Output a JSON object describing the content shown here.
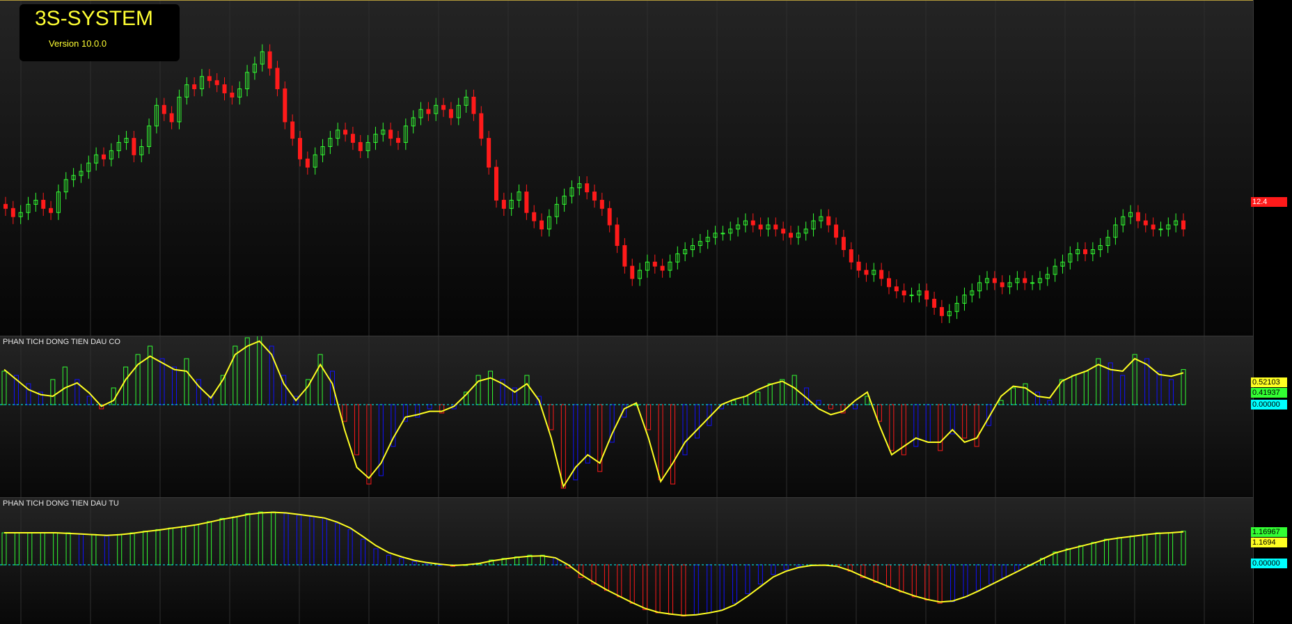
{
  "app": {
    "title": "3S-SYSTEM",
    "version": "Version 10.0.0"
  },
  "price_pane": {
    "last_price_label": "12.4",
    "colors": {
      "up": "#33ff33",
      "down": "#ff1a1a",
      "tag": "#ff1a1a"
    },
    "chart_data": {
      "type": "candlestick",
      "x": "bar index",
      "close": [
        12.9,
        12.7,
        12.8,
        13.0,
        13.1,
        12.9,
        12.8,
        13.3,
        13.6,
        13.7,
        13.8,
        14.0,
        14.2,
        14.1,
        14.3,
        14.5,
        14.6,
        14.2,
        14.4,
        14.9,
        15.4,
        15.2,
        15.0,
        15.6,
        15.9,
        15.8,
        16.1,
        16.0,
        15.9,
        15.7,
        15.6,
        15.8,
        16.2,
        16.4,
        16.7,
        16.3,
        15.8,
        15.0,
        14.6,
        14.1,
        13.9,
        14.2,
        14.4,
        14.6,
        14.8,
        14.7,
        14.5,
        14.3,
        14.5,
        14.7,
        14.8,
        14.6,
        14.5,
        14.9,
        15.1,
        15.3,
        15.2,
        15.4,
        15.3,
        15.1,
        15.4,
        15.6,
        15.2,
        14.6,
        13.9,
        13.1,
        12.9,
        13.1,
        13.3,
        12.8,
        12.6,
        12.4,
        12.7,
        13.0,
        13.2,
        13.4,
        13.5,
        13.3,
        13.1,
        12.9,
        12.5,
        12.0,
        11.5,
        11.2,
        11.4,
        11.6,
        11.5,
        11.4,
        11.6,
        11.8,
        11.9,
        12.0,
        12.1,
        12.2,
        12.3,
        12.3,
        12.4,
        12.5,
        12.6,
        12.5,
        12.4,
        12.5,
        12.4,
        12.3,
        12.2,
        12.3,
        12.4,
        12.6,
        12.7,
        12.5,
        12.2,
        11.9,
        11.6,
        11.4,
        11.3,
        11.4,
        11.2,
        11.0,
        10.9,
        10.8,
        10.8,
        10.9,
        10.7,
        10.5,
        10.3,
        10.4,
        10.6,
        10.8,
        10.9,
        11.1,
        11.2,
        11.1,
        11.0,
        11.1,
        11.2,
        11.1,
        11.1,
        11.2,
        11.3,
        11.5,
        11.6,
        11.8,
        11.9,
        11.8,
        11.9,
        12.0,
        12.2,
        12.5,
        12.7,
        12.8,
        12.6,
        12.5,
        12.4,
        12.4,
        12.5,
        12.6,
        12.4
      ],
      "last": 12.4
    }
  },
  "dau_co_pane": {
    "title": "PHAN TICH DONG TIEN DAU CO",
    "values": [
      "0.52103",
      "0.41937",
      "0.00000"
    ],
    "colors": {
      "pos": "#33ff33",
      "neg": "#ff1a1a",
      "weak": "#1010ff",
      "line": "#ffff22",
      "zero": "#00ffff"
    },
    "chart_data": {
      "type": "bar",
      "series": [
        {
          "values": [
            0.4,
            0.35,
            0.25,
            0.15,
            0.3,
            0.45,
            0.3,
            0.1,
            -0.05,
            0.2,
            0.45,
            0.6,
            0.7,
            0.55,
            0.45,
            0.55,
            0.3,
            0.1,
            0.35,
            0.7,
            0.8,
            0.85,
            0.7,
            0.35,
            0.1,
            0.3,
            0.6,
            0.4,
            -0.2,
            -0.6,
            -0.95,
            -0.85,
            -0.5,
            -0.2,
            -0.15,
            -0.05,
            -0.1,
            -0.05,
            0.15,
            0.35,
            0.4,
            0.3,
            0.2,
            0.35,
            0.1,
            -0.3,
            -1.0,
            -0.9,
            -0.7,
            -0.8,
            -0.45,
            -0.15,
            0.0,
            -0.3,
            -0.9,
            -0.95,
            -0.6,
            -0.4,
            -0.25,
            -0.05,
            0.05,
            0.1,
            0.15,
            0.25,
            0.3,
            0.35,
            0.2,
            0.05,
            -0.05,
            -0.1,
            -0.05,
            0.1,
            -0.2,
            -0.55,
            -0.6,
            -0.5,
            -0.45,
            -0.55,
            -0.35,
            -0.4,
            -0.5,
            -0.25,
            0.05,
            0.2,
            0.25,
            0.15,
            0.05,
            0.3,
            0.35,
            0.4,
            0.55,
            0.5,
            0.35,
            0.6,
            0.55,
            0.4,
            0.3,
            0.42
          ]
        },
        {
          "values": [
            0.42,
            0.3,
            0.18,
            0.12,
            0.1,
            0.2,
            0.26,
            0.14,
            -0.02,
            0.05,
            0.3,
            0.48,
            0.58,
            0.5,
            0.42,
            0.4,
            0.22,
            0.08,
            0.3,
            0.6,
            0.7,
            0.76,
            0.6,
            0.25,
            0.05,
            0.22,
            0.48,
            0.25,
            -0.3,
            -0.75,
            -0.88,
            -0.7,
            -0.4,
            -0.15,
            -0.12,
            -0.08,
            -0.08,
            -0.02,
            0.12,
            0.28,
            0.32,
            0.25,
            0.15,
            0.25,
            0.05,
            -0.4,
            -0.98,
            -0.75,
            -0.6,
            -0.7,
            -0.35,
            -0.05,
            0.02,
            -0.4,
            -0.92,
            -0.7,
            -0.45,
            -0.3,
            -0.15,
            0.0,
            0.06,
            0.1,
            0.18,
            0.24,
            0.28,
            0.2,
            0.08,
            -0.05,
            -0.12,
            -0.08,
            0.05,
            0.15,
            -0.25,
            -0.6,
            -0.5,
            -0.4,
            -0.45,
            -0.45,
            -0.3,
            -0.45,
            -0.4,
            -0.15,
            0.1,
            0.22,
            0.2,
            0.1,
            0.08,
            0.28,
            0.35,
            0.4,
            0.48,
            0.42,
            0.4,
            0.55,
            0.48,
            0.36,
            0.34,
            0.38
          ]
        }
      ]
    }
  },
  "dau_tu_pane": {
    "title": "PHAN TICH DONG TIEN DAU TU",
    "values": [
      "1.16967",
      "1.1694",
      "0.00000"
    ],
    "colors": {
      "pos": "#33ff33",
      "neg": "#ff1a1a",
      "weak": "#1010ff",
      "line": "#ffff22",
      "zero": "#00ffff"
    },
    "chart_data": {
      "type": "bar",
      "series": [
        {
          "values": [
            1.0,
            1.0,
            1.0,
            1.0,
            1.0,
            1.0,
            0.95,
            0.95,
            0.9,
            0.95,
            1.0,
            1.05,
            1.1,
            1.15,
            1.2,
            1.25,
            1.35,
            1.45,
            1.5,
            1.6,
            1.65,
            1.65,
            1.6,
            1.55,
            1.5,
            1.45,
            1.3,
            1.1,
            0.8,
            0.5,
            0.3,
            0.2,
            0.1,
            0.05,
            0.0,
            -0.05,
            0.0,
            0.05,
            0.15,
            0.2,
            0.25,
            0.3,
            0.3,
            0.2,
            -0.1,
            -0.4,
            -0.6,
            -0.8,
            -1.0,
            -1.2,
            -1.4,
            -1.5,
            -1.55,
            -1.6,
            -1.55,
            -1.5,
            -1.4,
            -1.2,
            -0.9,
            -0.6,
            -0.3,
            -0.15,
            -0.05,
            0.0,
            0.0,
            -0.05,
            -0.2,
            -0.4,
            -0.55,
            -0.7,
            -0.85,
            -1.0,
            -1.1,
            -1.2,
            -1.15,
            -1.0,
            -0.8,
            -0.6,
            -0.4,
            -0.2,
            0.0,
            0.2,
            0.4,
            0.5,
            0.6,
            0.7,
            0.8,
            0.85,
            0.9,
            0.95,
            1.0,
            1.0,
            1.05
          ]
        },
        {
          "values": [
            1.0,
            1.0,
            1.0,
            1.0,
            1.0,
            0.98,
            0.96,
            0.94,
            0.92,
            0.94,
            0.98,
            1.04,
            1.08,
            1.14,
            1.19,
            1.25,
            1.33,
            1.42,
            1.49,
            1.57,
            1.62,
            1.64,
            1.62,
            1.57,
            1.52,
            1.46,
            1.33,
            1.15,
            0.88,
            0.6,
            0.38,
            0.25,
            0.14,
            0.07,
            0.02,
            -0.02,
            0.0,
            0.04,
            0.12,
            0.18,
            0.23,
            0.27,
            0.28,
            0.22,
            0.0,
            -0.3,
            -0.55,
            -0.78,
            -0.98,
            -1.18,
            -1.36,
            -1.48,
            -1.54,
            -1.58,
            -1.56,
            -1.5,
            -1.42,
            -1.25,
            -0.98,
            -0.68,
            -0.38,
            -0.2,
            -0.08,
            -0.02,
            -0.01,
            -0.05,
            -0.18,
            -0.36,
            -0.52,
            -0.68,
            -0.83,
            -0.97,
            -1.08,
            -1.16,
            -1.13,
            -1.0,
            -0.82,
            -0.62,
            -0.42,
            -0.22,
            -0.02,
            0.18,
            0.37,
            0.48,
            0.58,
            0.68,
            0.78,
            0.84,
            0.89,
            0.94,
            0.98,
            1.0,
            1.03
          ]
        }
      ]
    }
  }
}
